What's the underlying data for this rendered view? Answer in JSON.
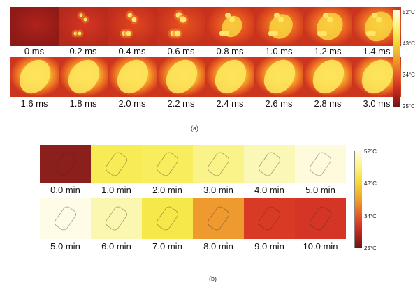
{
  "panel_a": {
    "caption": "(a)",
    "row1": [
      {
        "label": "0 ms",
        "type": "off"
      },
      {
        "label": "0.2 ms",
        "type": "dots"
      },
      {
        "label": "0.4 ms",
        "type": "dots2"
      },
      {
        "label": "0.6 ms",
        "type": "dots3"
      },
      {
        "label": "0.8 ms",
        "type": "blob1"
      },
      {
        "label": "1.0 ms",
        "type": "blob2"
      },
      {
        "label": "1.2 ms",
        "type": "blob3"
      },
      {
        "label": "1.4 ms",
        "type": "blob4"
      }
    ],
    "row2": [
      {
        "label": "1.6 ms",
        "type": "hot"
      },
      {
        "label": "1.8 ms",
        "type": "hot"
      },
      {
        "label": "2.0 ms",
        "type": "hot"
      },
      {
        "label": "2.2 ms",
        "type": "hot"
      },
      {
        "label": "2.4 ms",
        "type": "hot"
      },
      {
        "label": "2.6 ms",
        "type": "hot"
      },
      {
        "label": "2.8 ms",
        "type": "hot"
      },
      {
        "label": "3.0 ms",
        "type": "hot"
      }
    ],
    "scale": {
      "max": "52°C",
      "mid1": "43°C",
      "mid2": "34°C",
      "min": "25°C"
    }
  },
  "panel_b": {
    "caption": "(b)",
    "row1": [
      {
        "label": "0.0 min",
        "color": "#8a1f1c"
      },
      {
        "label": "1.0 min",
        "color": "#f7ec55"
      },
      {
        "label": "2.0 min",
        "color": "#f8ee5d"
      },
      {
        "label": "3.0 min",
        "color": "#faf38a"
      },
      {
        "label": "4.0 min",
        "color": "#fbf7b6"
      },
      {
        "label": "5.0 min",
        "color": "#fdfbdc"
      }
    ],
    "row2": [
      {
        "label": "5.0 min",
        "color": "#fefce6"
      },
      {
        "label": "6.0 min",
        "color": "#fbf6b0"
      },
      {
        "label": "7.0 min",
        "color": "#f6e84b"
      },
      {
        "label": "8.0 min",
        "color": "#ee9a2e"
      },
      {
        "label": "9.0 min",
        "color": "#d93a26"
      },
      {
        "label": "10.0 min",
        "color": "#d53527"
      }
    ],
    "scale": {
      "max": "52°C",
      "mid1": "43°C",
      "mid2": "34°C",
      "min": "25°C"
    }
  }
}
